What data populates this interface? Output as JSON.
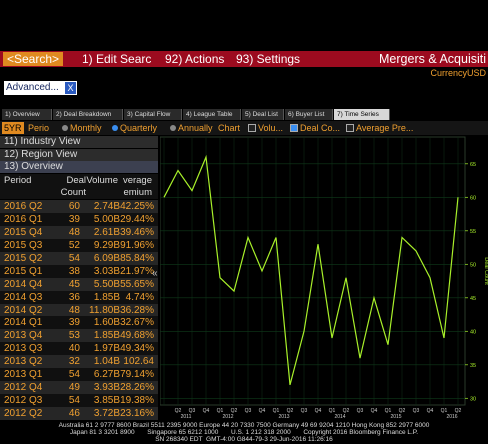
{
  "toolbar": {
    "search": "<Search>",
    "items": [
      "1) Edit Searc",
      "92) Actions",
      "93) Settings"
    ],
    "title": "Mergers & Acquisiti",
    "currency": "CurrencyUSD"
  },
  "filter": {
    "label": "Advanced...",
    "close": "X"
  },
  "tabs": [
    "1) Overview",
    "2) Deal Breakdown",
    "3) Capital Flow",
    "4) League Table",
    "5) Deal List",
    "6) Buyer List",
    "7) Time Series"
  ],
  "selected_tab": "7) Time Series",
  "options": {
    "range": "5YR",
    "period": "Perio",
    "radios": [
      "Monthly",
      "Quarterly",
      "Annually"
    ],
    "selected_radio": "Quarterly",
    "chart": "Chart",
    "checks": [
      "Volu...",
      "Deal Co...",
      "Average Pre..."
    ],
    "checked": [
      "Deal Co..."
    ]
  },
  "views": [
    "11) Industry View",
    "12) Region View",
    "13) Overview"
  ],
  "collapse": "«",
  "table": {
    "headers": [
      "Period",
      "Deal Count",
      "Volume",
      "verage",
      "emium"
    ],
    "rows": [
      [
        "2016 Q2",
        "60",
        "2.74B",
        "42.25%"
      ],
      [
        "2016 Q1",
        "39",
        "5.00B",
        "29.44%"
      ],
      [
        "2015 Q4",
        "48",
        "2.61B",
        "39.46%"
      ],
      [
        "2015 Q3",
        "52",
        "9.29B",
        "91.96%"
      ],
      [
        "2015 Q2",
        "54",
        "6.09B",
        "85.84%"
      ],
      [
        "2015 Q1",
        "38",
        "3.03B",
        "21.97%"
      ],
      [
        "2014 Q4",
        "45",
        "5.50B",
        "55.65%"
      ],
      [
        "2014 Q3",
        "36",
        "1.85B",
        "4.74%"
      ],
      [
        "2014 Q2",
        "48",
        "11.80B",
        "36.28%"
      ],
      [
        "2014 Q1",
        "39",
        "1.60B",
        "32.67%"
      ],
      [
        "2013 Q4",
        "53",
        "1.85B",
        "49.68%"
      ],
      [
        "2013 Q3",
        "40",
        "1.97B",
        "49.34%"
      ],
      [
        "2013 Q2",
        "32",
        "1.04B",
        "102.64"
      ],
      [
        "2013 Q1",
        "54",
        "6.27B",
        "79.14%"
      ],
      [
        "2012 Q4",
        "49",
        "3.93B",
        "28.26%"
      ],
      [
        "2012 Q3",
        "54",
        "3.85B",
        "19.38%"
      ],
      [
        "2012 Q2",
        "46",
        "3.72B",
        "23.16%"
      ]
    ]
  },
  "chart": {
    "type": "line",
    "y_label": "Deal Count",
    "color": "#a8f02a",
    "categories": [
      null,
      "Q2",
      "Q3",
      "Q4",
      "Q1",
      "Q2",
      "Q3",
      "Q4",
      "Q1",
      "Q2",
      "Q3",
      "Q4",
      "Q1",
      "Q2",
      "Q3",
      "Q4",
      "Q1",
      "Q2",
      "Q3",
      "Q4",
      "Q1",
      "Q2"
    ],
    "years": [
      null,
      null,
      "2011",
      null,
      null,
      "2012",
      null,
      null,
      null,
      "2013",
      null,
      null,
      null,
      "2014",
      null,
      null,
      null,
      "2015",
      null,
      null,
      null,
      "2016"
    ],
    "values": [
      60,
      64,
      61,
      66,
      48,
      46,
      54,
      49,
      54,
      32,
      40,
      53,
      39,
      48,
      36,
      45,
      38,
      54,
      52,
      48,
      39,
      60
    ],
    "ylim": [
      29,
      69
    ],
    "yticks": [
      30,
      35,
      40,
      45,
      50,
      55,
      60,
      65
    ],
    "grid": true
  },
  "footer": [
    "Australia 61 2 9777 8600 Brazil 5511 2395 9000 Europe 44 20 7330 7500 Germany 49 69 9204 1210 Hong Kong 852 2977 6000",
    "Japan 81 3 3201 8900       Singapore 65 6212 1000       U.S. 1 212 318 2000       Copyright 2016 Bloomberg Finance L.P.",
    "SN 268340 EDT  GMT-4:00 G844-79-3 29-Jun-2016 11:26:16"
  ]
}
